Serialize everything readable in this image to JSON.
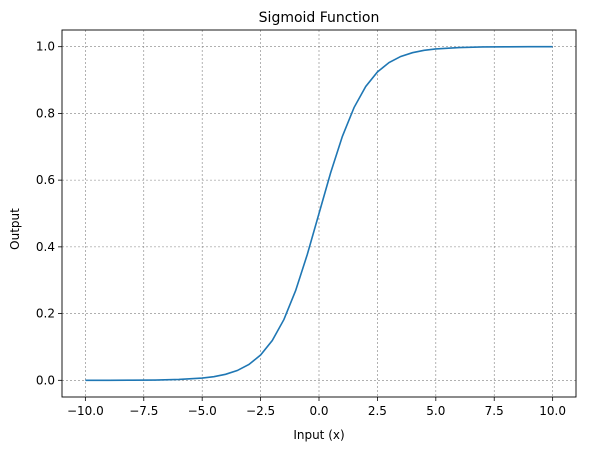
{
  "chart_data": {
    "type": "line",
    "title": "Sigmoid Function",
    "xlabel": "Input (x)",
    "ylabel": "Output",
    "xlim": [
      -11,
      11
    ],
    "ylim": [
      -0.05,
      1.05
    ],
    "x_ticks": [
      -10.0,
      -7.5,
      -5.0,
      -2.5,
      0.0,
      2.5,
      5.0,
      7.5,
      10.0
    ],
    "x_tick_labels": [
      "−10.0",
      "−7.5",
      "−5.0",
      "−2.5",
      "0.0",
      "2.5",
      "5.0",
      "7.5",
      "10.0"
    ],
    "y_ticks": [
      0.0,
      0.2,
      0.4,
      0.6,
      0.8,
      1.0
    ],
    "y_tick_labels": [
      "0.0",
      "0.2",
      "0.4",
      "0.6",
      "0.8",
      "1.0"
    ],
    "grid": true,
    "grid_color": "#808080",
    "line_color": "#1f77b4",
    "series": [
      {
        "x": [
          -10,
          -9,
          -8,
          -7,
          -6,
          -5,
          -4.5,
          -4,
          -3.5,
          -3,
          -2.5,
          -2,
          -1.5,
          -1,
          -0.5,
          0,
          0.5,
          1,
          1.5,
          2,
          2.5,
          3,
          3.5,
          4,
          4.5,
          5,
          6,
          7,
          8,
          9,
          10
        ],
        "y": [
          0.0,
          0.0001,
          0.0003,
          0.0009,
          0.0025,
          0.0067,
          0.011,
          0.018,
          0.0293,
          0.0474,
          0.0759,
          0.1192,
          0.1824,
          0.2689,
          0.3775,
          0.5,
          0.6225,
          0.7311,
          0.8176,
          0.8808,
          0.9241,
          0.9526,
          0.9707,
          0.982,
          0.989,
          0.9933,
          0.9975,
          0.9991,
          0.9997,
          0.9999,
          1.0
        ]
      }
    ]
  }
}
